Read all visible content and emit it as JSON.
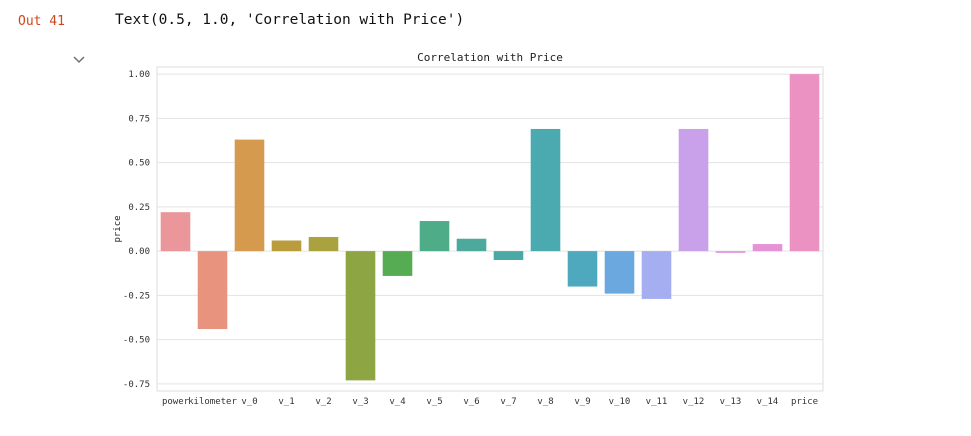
{
  "cell": {
    "out_label": "Out 41",
    "output_text": "Text(0.5, 1.0, 'Correlation with Price')",
    "collapse_icon": "chevron-down-icon"
  },
  "chart_data": {
    "type": "bar",
    "title": "Correlation with Price",
    "xlabel": "",
    "ylabel": "price",
    "ylim": [
      -0.79,
      1.04
    ],
    "yticks": [
      1.0,
      0.75,
      0.5,
      0.25,
      0.0,
      -0.25,
      -0.5,
      -0.75
    ],
    "ytick_labels": [
      "1.00",
      "0.75",
      "0.50",
      "0.25",
      "0.00",
      "-0.25",
      "-0.50",
      "-0.75"
    ],
    "grid": true,
    "categories": [
      "power",
      "kilometer",
      "v_0",
      "v_1",
      "v_2",
      "v_3",
      "v_4",
      "v_5",
      "v_6",
      "v_7",
      "v_8",
      "v_9",
      "v_10",
      "v_11",
      "v_12",
      "v_13",
      "v_14",
      "price"
    ],
    "values": [
      0.22,
      -0.44,
      0.63,
      0.06,
      0.08,
      -0.73,
      -0.14,
      0.17,
      0.07,
      -0.05,
      0.69,
      -0.2,
      -0.24,
      -0.27,
      0.69,
      -0.01,
      0.04,
      1.0
    ],
    "colors": [
      "#ea969b",
      "#e8937e",
      "#d69a4f",
      "#bb9c3d",
      "#aaa23f",
      "#8da643",
      "#55ac52",
      "#4fac88",
      "#4ca99c",
      "#4aa8a5",
      "#4baab0",
      "#4fa9be",
      "#6ba8df",
      "#a4aef0",
      "#c9a1ea",
      "#e197e2",
      "#e592d6",
      "#eb92c3"
    ]
  }
}
